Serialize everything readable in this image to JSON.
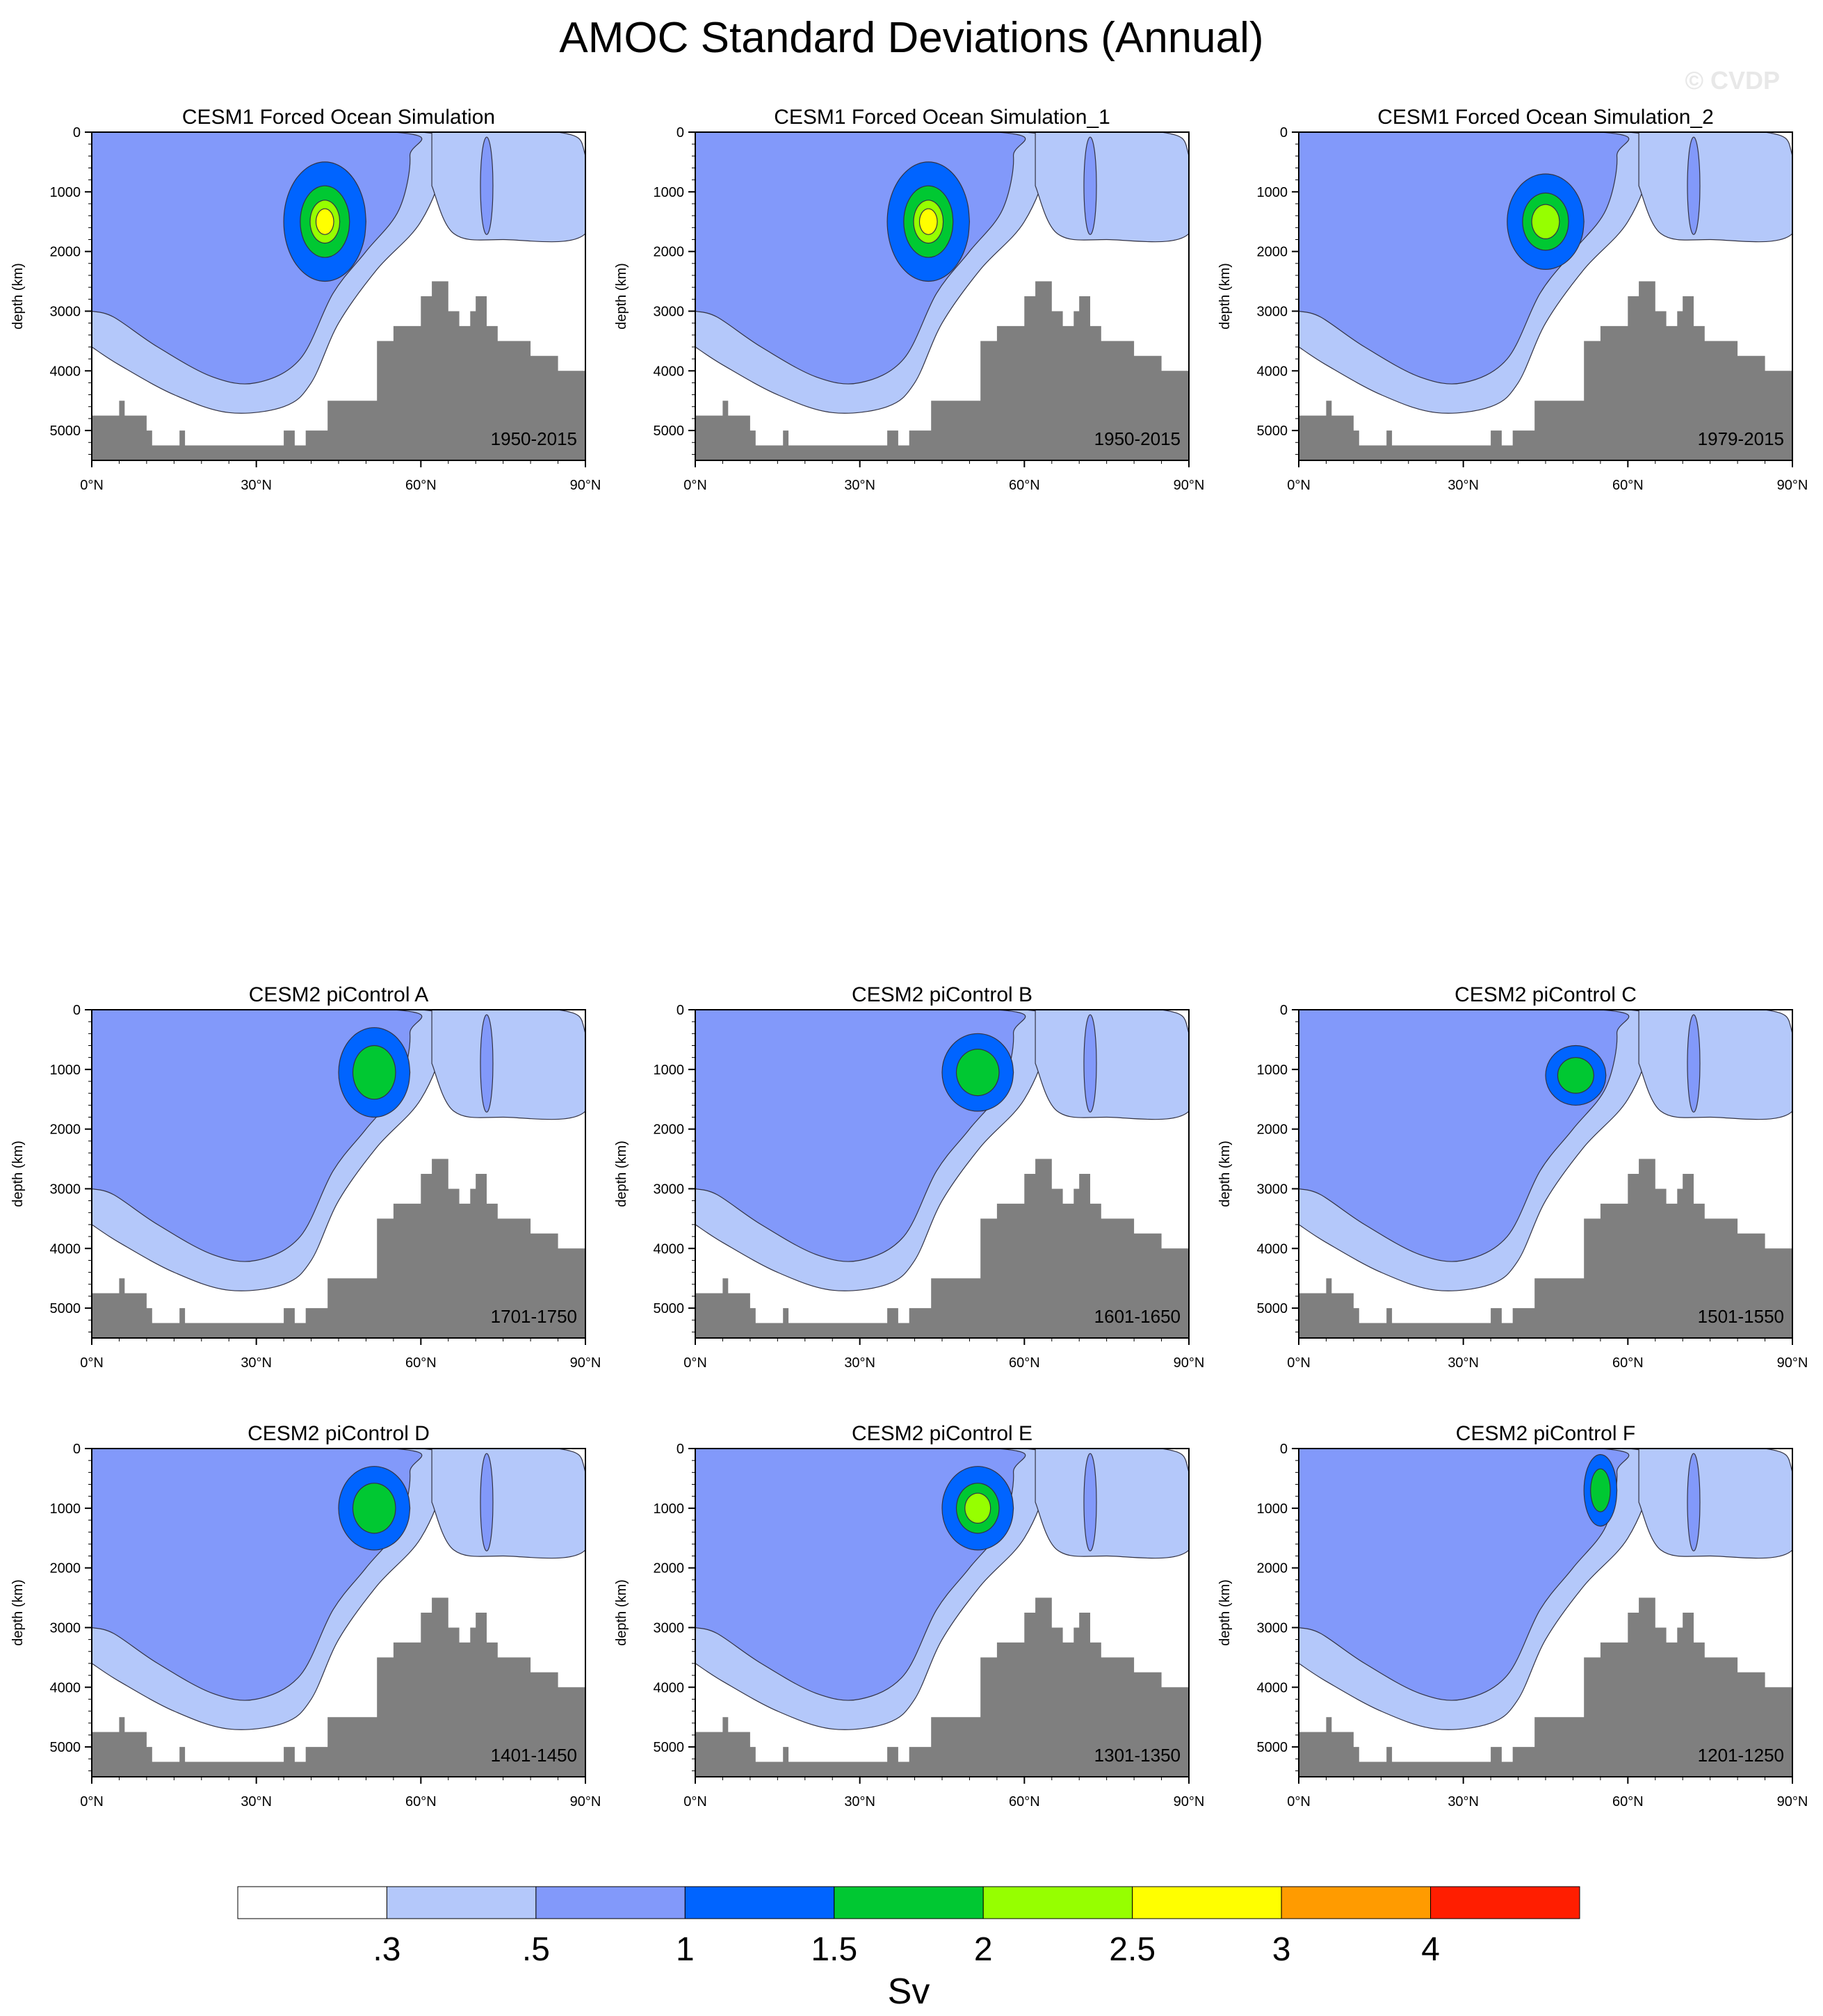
{
  "title": "AMOC Standard Deviations (Annual)",
  "watermark": "© CVDP",
  "colors": {
    "background": "#ffffff",
    "land": "#7f7f7f",
    "contour_line": "#333344",
    "levels": [
      "#ffffff",
      "#b4c8fa",
      "#8299fa",
      "#0064ff",
      "#00c832",
      "#96ff00",
      "#ffff00",
      "#ff9b00",
      "#ff1e00"
    ]
  },
  "colorbar": {
    "labels": [
      ".3",
      ".5",
      "1",
      "1.5",
      "2",
      "2.5",
      "3",
      "4"
    ],
    "unit": "Sv"
  },
  "chart_data": [
    {
      "type": "heatmap",
      "title": "CESM1 Forced Ocean Simulation",
      "period": "1950-2015",
      "ylabel": "depth (km)",
      "xlabel": "",
      "x_ticks": [
        "0°N",
        "30°N",
        "60°N",
        "90°N"
      ],
      "y_ticks": [
        "0",
        "1000",
        "2000",
        "3000",
        "4000",
        "5000"
      ],
      "xlim": [
        0,
        90
      ],
      "ylim": [
        0,
        5500
      ],
      "core_max_sv": 2.5,
      "core_lat_range": [
        35,
        50
      ],
      "core_depth_range": [
        500,
        2500
      ]
    },
    {
      "type": "heatmap",
      "title": "CESM1 Forced Ocean Simulation_1",
      "period": "1950-2015",
      "ylabel": "depth (km)",
      "xlabel": "",
      "x_ticks": [
        "0°N",
        "30°N",
        "60°N",
        "90°N"
      ],
      "y_ticks": [
        "0",
        "1000",
        "2000",
        "3000",
        "4000",
        "5000"
      ],
      "xlim": [
        0,
        90
      ],
      "ylim": [
        0,
        5500
      ],
      "core_max_sv": 2.5,
      "core_lat_range": [
        35,
        50
      ],
      "core_depth_range": [
        500,
        2500
      ]
    },
    {
      "type": "heatmap",
      "title": "CESM1 Forced Ocean Simulation_2",
      "period": "1979-2015",
      "ylabel": "depth (km)",
      "xlabel": "",
      "x_ticks": [
        "0°N",
        "30°N",
        "60°N",
        "90°N"
      ],
      "y_ticks": [
        "0",
        "1000",
        "2000",
        "3000",
        "4000",
        "5000"
      ],
      "xlim": [
        0,
        90
      ],
      "ylim": [
        0,
        5500
      ],
      "core_max_sv": 2.0,
      "core_lat_range": [
        38,
        52
      ],
      "core_depth_range": [
        700,
        2300
      ]
    },
    {
      "type": "heatmap",
      "title": "CESM2 piControl A",
      "period": "1701-1750",
      "ylabel": "depth (km)",
      "xlabel": "",
      "x_ticks": [
        "0°N",
        "30°N",
        "60°N",
        "90°N"
      ],
      "y_ticks": [
        "0",
        "1000",
        "2000",
        "3000",
        "4000",
        "5000"
      ],
      "xlim": [
        0,
        90
      ],
      "ylim": [
        0,
        5500
      ],
      "core_max_sv": 1.5,
      "core_lat_range": [
        45,
        58
      ],
      "core_depth_range": [
        300,
        1800
      ]
    },
    {
      "type": "heatmap",
      "title": "CESM2 piControl B",
      "period": "1601-1650",
      "ylabel": "depth (km)",
      "xlabel": "",
      "x_ticks": [
        "0°N",
        "30°N",
        "60°N",
        "90°N"
      ],
      "y_ticks": [
        "0",
        "1000",
        "2000",
        "3000",
        "4000",
        "5000"
      ],
      "xlim": [
        0,
        90
      ],
      "ylim": [
        0,
        5500
      ],
      "core_max_sv": 1.5,
      "core_lat_range": [
        45,
        58
      ],
      "core_depth_range": [
        400,
        1700
      ]
    },
    {
      "type": "heatmap",
      "title": "CESM2 piControl C",
      "period": "1501-1550",
      "ylabel": "depth (km)",
      "xlabel": "",
      "x_ticks": [
        "0°N",
        "30°N",
        "60°N",
        "90°N"
      ],
      "y_ticks": [
        "0",
        "1000",
        "2000",
        "3000",
        "4000",
        "5000"
      ],
      "xlim": [
        0,
        90
      ],
      "ylim": [
        0,
        5500
      ],
      "core_max_sv": 1.5,
      "core_lat_range": [
        45,
        56
      ],
      "core_depth_range": [
        600,
        1600
      ]
    },
    {
      "type": "heatmap",
      "title": "CESM2 piControl D",
      "period": "1401-1450",
      "ylabel": "depth (km)",
      "xlabel": "",
      "x_ticks": [
        "0°N",
        "30°N",
        "60°N",
        "90°N"
      ],
      "y_ticks": [
        "0",
        "1000",
        "2000",
        "3000",
        "4000",
        "5000"
      ],
      "xlim": [
        0,
        90
      ],
      "ylim": [
        0,
        5500
      ],
      "core_max_sv": 1.5,
      "core_lat_range": [
        45,
        58
      ],
      "core_depth_range": [
        300,
        1700
      ]
    },
    {
      "type": "heatmap",
      "title": "CESM2 piControl E",
      "period": "1301-1350",
      "ylabel": "depth (km)",
      "xlabel": "",
      "x_ticks": [
        "0°N",
        "30°N",
        "60°N",
        "90°N"
      ],
      "y_ticks": [
        "0",
        "1000",
        "2000",
        "3000",
        "4000",
        "5000"
      ],
      "xlim": [
        0,
        90
      ],
      "ylim": [
        0,
        5500
      ],
      "core_max_sv": 2.0,
      "core_lat_range": [
        45,
        58
      ],
      "core_depth_range": [
        300,
        1700
      ]
    },
    {
      "type": "heatmap",
      "title": "CESM2 piControl F",
      "period": "1201-1250",
      "ylabel": "depth (km)",
      "xlabel": "",
      "x_ticks": [
        "0°N",
        "30°N",
        "60°N",
        "90°N"
      ],
      "y_ticks": [
        "0",
        "1000",
        "2000",
        "3000",
        "4000",
        "5000"
      ],
      "xlim": [
        0,
        90
      ],
      "ylim": [
        0,
        5500
      ],
      "core_max_sv": 1.5,
      "core_lat_range": [
        52,
        58
      ],
      "core_depth_range": [
        100,
        1300
      ]
    }
  ]
}
